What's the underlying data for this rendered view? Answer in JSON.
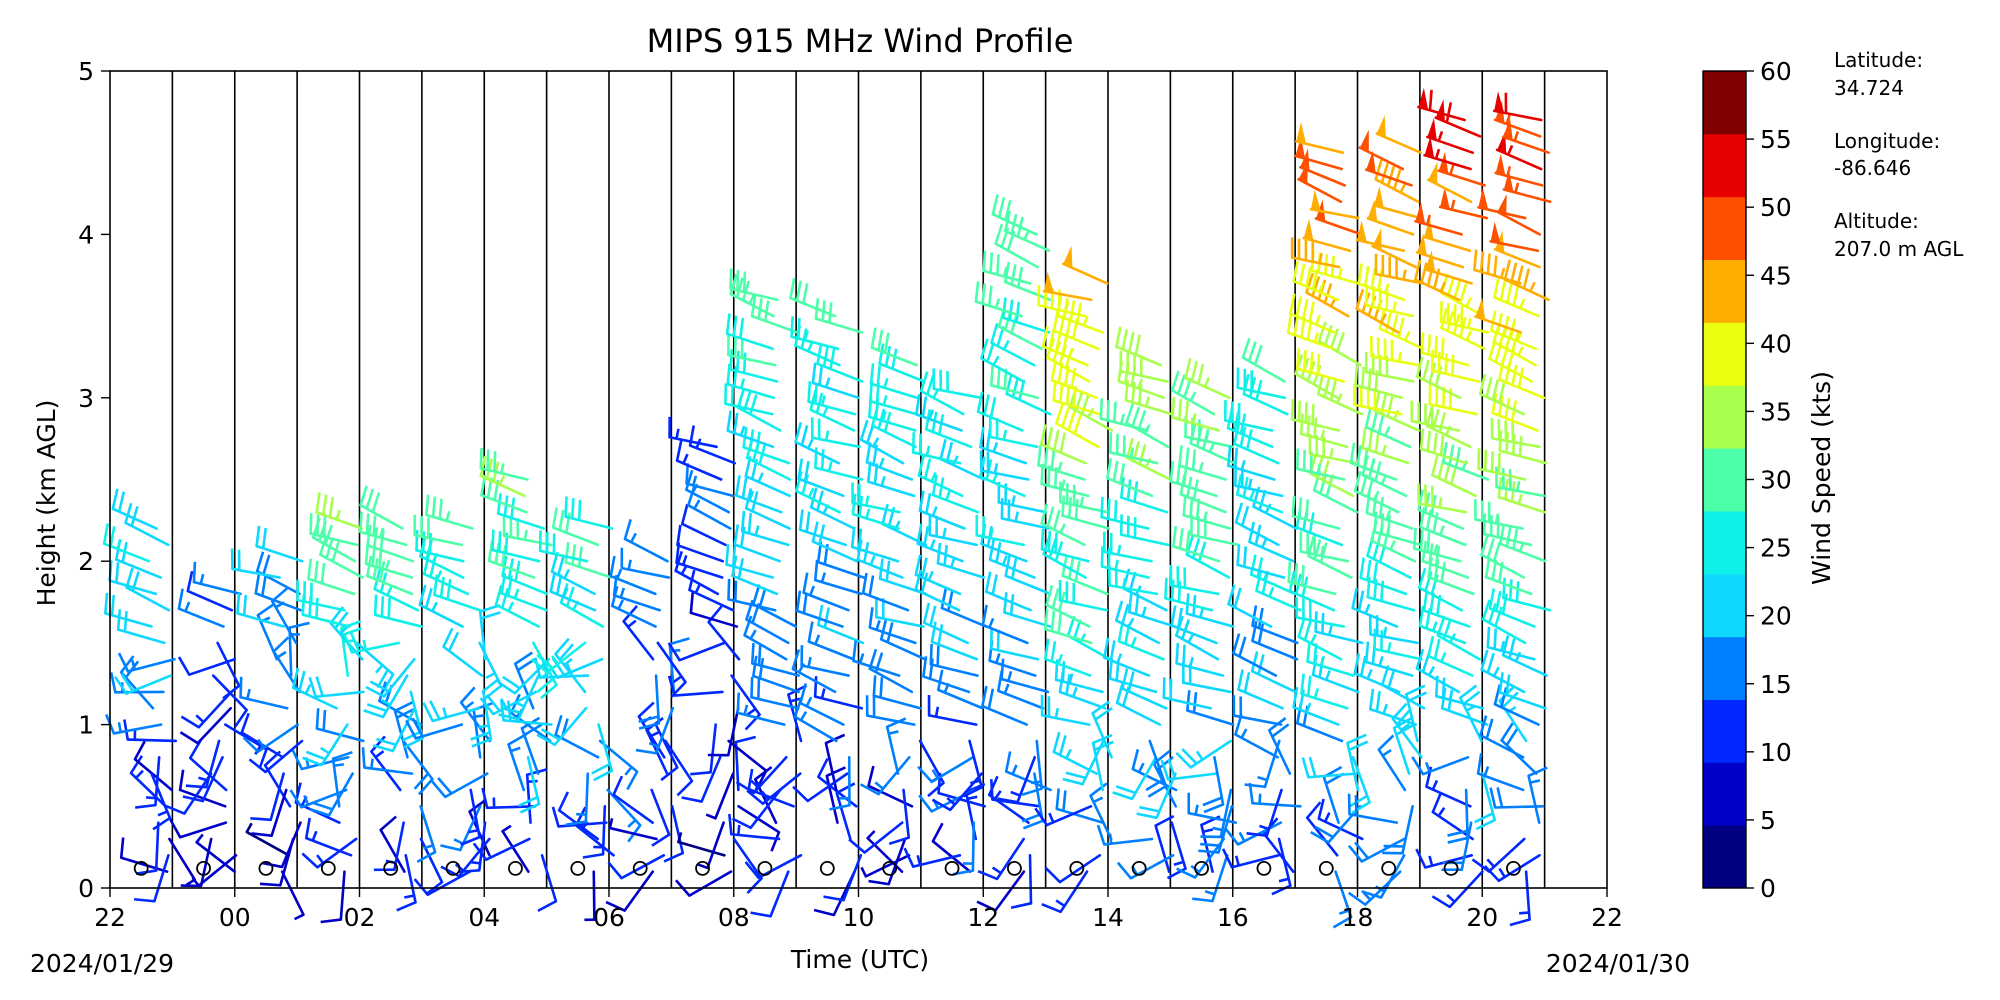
{
  "chart_data": {
    "type": "wind-barb-profile",
    "title": "MIPS 915 MHz Wind Profile",
    "xlabel": "Time (UTC)",
    "ylabel": "Height (km AGL)",
    "x_ticks": [
      "22",
      "00",
      "02",
      "04",
      "06",
      "08",
      "10",
      "12",
      "14",
      "16",
      "18",
      "20",
      "22"
    ],
    "y_ticks": [
      "0",
      "1",
      "2",
      "3",
      "4",
      "5"
    ],
    "ylim": [
      0,
      5
    ],
    "date_start": "2024/01/29",
    "date_end": "2024/01/30",
    "colorbar": {
      "label": "Wind Speed (kts)",
      "ticks": [
        "0",
        "5",
        "10",
        "15",
        "20",
        "25",
        "30",
        "35",
        "40",
        "45",
        "50",
        "55",
        "60"
      ],
      "colors": [
        "#000080",
        "#0000c8",
        "#0028ff",
        "#0080ff",
        "#0fd8ff",
        "#0ff0e8",
        "#4cffa8",
        "#a8ff4c",
        "#e8ff0f",
        "#ffae00",
        "#ff5000",
        "#e60000",
        "#800000"
      ]
    },
    "hourly_vertical_lines": true,
    "profiles": [
      {
        "hour": "22",
        "max_height_km": 2.2,
        "speed_kts_surface": 6,
        "speed_kts_top": 24
      },
      {
        "hour": "23",
        "max_height_km": 1.8,
        "speed_kts_surface": 6,
        "speed_kts_top": 15
      },
      {
        "hour": "00",
        "max_height_km": 2.0,
        "speed_kts_surface": 5,
        "speed_kts_top": 22
      },
      {
        "hour": "01",
        "max_height_km": 2.2,
        "speed_kts_surface": 8,
        "speed_kts_top": 33
      },
      {
        "hour": "02",
        "max_height_km": 2.2,
        "speed_kts_surface": 8,
        "speed_kts_top": 33
      },
      {
        "hour": "03",
        "max_height_km": 2.2,
        "speed_kts_surface": 8,
        "speed_kts_top": 32
      },
      {
        "hour": "04",
        "max_height_km": 2.5,
        "speed_kts_surface": 8,
        "speed_kts_top": 35
      },
      {
        "hour": "05",
        "max_height_km": 2.3,
        "speed_kts_surface": 8,
        "speed_kts_top": 32
      },
      {
        "hour": "06",
        "max_height_km": 2.0,
        "speed_kts_surface": 8,
        "speed_kts_top": 18
      },
      {
        "hour": "07",
        "max_height_km": 2.7,
        "speed_kts_surface": 6,
        "speed_kts_top": 15
      },
      {
        "hour": "08",
        "max_height_km": 3.6,
        "speed_kts_surface": 8,
        "speed_kts_top": 32
      },
      {
        "hour": "09",
        "max_height_km": 3.5,
        "speed_kts_surface": 8,
        "speed_kts_top": 30
      },
      {
        "hour": "10",
        "max_height_km": 3.3,
        "speed_kts_surface": 8,
        "speed_kts_top": 30
      },
      {
        "hour": "11",
        "max_height_km": 3.0,
        "speed_kts_surface": 10,
        "speed_kts_top": 28
      },
      {
        "hour": "12",
        "max_height_km": 4.0,
        "speed_kts_surface": 10,
        "speed_kts_top": 34
      },
      {
        "hour": "13",
        "max_height_km": 3.7,
        "speed_kts_surface": 12,
        "speed_kts_top": 47
      },
      {
        "hour": "14",
        "max_height_km": 3.2,
        "speed_kts_surface": 12,
        "speed_kts_top": 38
      },
      {
        "hour": "15",
        "max_height_km": 3.0,
        "speed_kts_surface": 12,
        "speed_kts_top": 37
      },
      {
        "hour": "16",
        "max_height_km": 3.1,
        "speed_kts_surface": 12,
        "speed_kts_top": 30
      },
      {
        "hour": "17",
        "max_height_km": 4.5,
        "speed_kts_surface": 12,
        "speed_kts_top": 52
      },
      {
        "hour": "18",
        "max_height_km": 4.5,
        "speed_kts_surface": 12,
        "speed_kts_top": 52
      },
      {
        "hour": "19",
        "max_height_km": 4.8,
        "speed_kts_surface": 10,
        "speed_kts_top": 58
      },
      {
        "hour": "20",
        "max_height_km": 4.8,
        "speed_kts_surface": 10,
        "speed_kts_top": 58
      }
    ]
  },
  "station_info": {
    "latitude_label": "Latitude:",
    "latitude_value": "34.724",
    "longitude_label": "Longitude:",
    "longitude_value": "-86.646",
    "altitude_label": "Altitude:",
    "altitude_value": "207.0 m AGL"
  }
}
